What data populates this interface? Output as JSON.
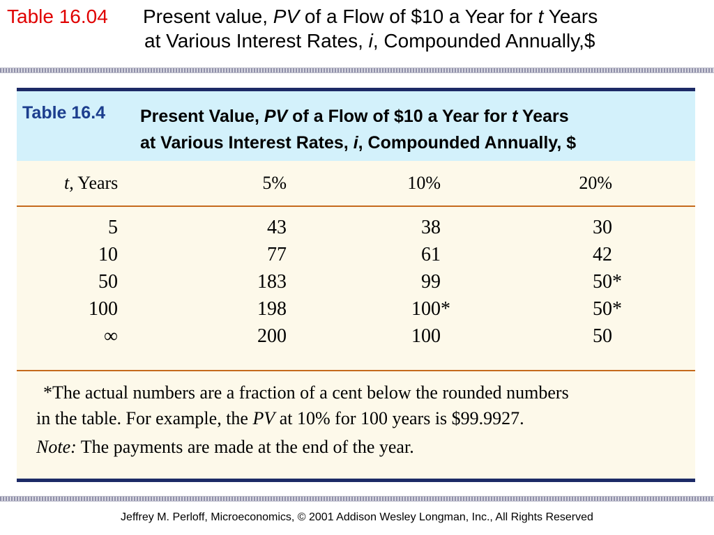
{
  "slide": {
    "title_label": "Table 16.04",
    "title_pre": "Present value, ",
    "title_pv": "PV",
    "title_mid": " of a Flow of $10 a Year for ",
    "title_t": "t",
    "title_post": " Years",
    "title_line2_pre": "at Various Interest Rates, ",
    "title_i": "i",
    "title_line2_post": ", Compounded Annually,$"
  },
  "table": {
    "label": "Table 16.4",
    "title_pre": "Present Value, ",
    "title_pv": "PV",
    "title_mid": " of a Flow of $10 a Year for ",
    "title_t": "t",
    "title_post": " Years",
    "title_line2_pre": "at Various Interest Rates, ",
    "title_i": "i",
    "title_line2_post": ", Compounded Annually, $",
    "col0_var": "t,",
    "col0_rest": " Years",
    "columns": [
      "5%",
      "10%",
      "20%"
    ],
    "rows": [
      {
        "t": "5",
        "r5": "43",
        "r10": "38",
        "r10_star": "",
        "r20": "30",
        "r20_star": ""
      },
      {
        "t": "10",
        "r5": "77",
        "r10": "61",
        "r10_star": "",
        "r20": "42",
        "r20_star": ""
      },
      {
        "t": "50",
        "r5": "183",
        "r10": "99",
        "r10_star": "",
        "r20": "50",
        "r20_star": "*"
      },
      {
        "t": "100",
        "r5": "198",
        "r10": "100",
        "r10_star": "*",
        "r20": "50",
        "r20_star": "*"
      },
      {
        "t": "∞",
        "r5": "200",
        "r10": "100",
        "r10_star": "",
        "r20": "50",
        "r20_star": ""
      }
    ],
    "note1": "*The actual numbers are a fraction of a cent below the rounded numbers",
    "note2_pre": "in the table. For example, the ",
    "note2_pv": "PV",
    "note2_post": " at 10% for 100 years is $99.9927.",
    "note3_label": "Note:",
    "note3_text": " The payments are made at the end of the year."
  },
  "footer": "Jeffrey M. Perloff, Microeconomics,  © 2001 Addison Wesley Longman, Inc.,  All Rights Reserved"
}
